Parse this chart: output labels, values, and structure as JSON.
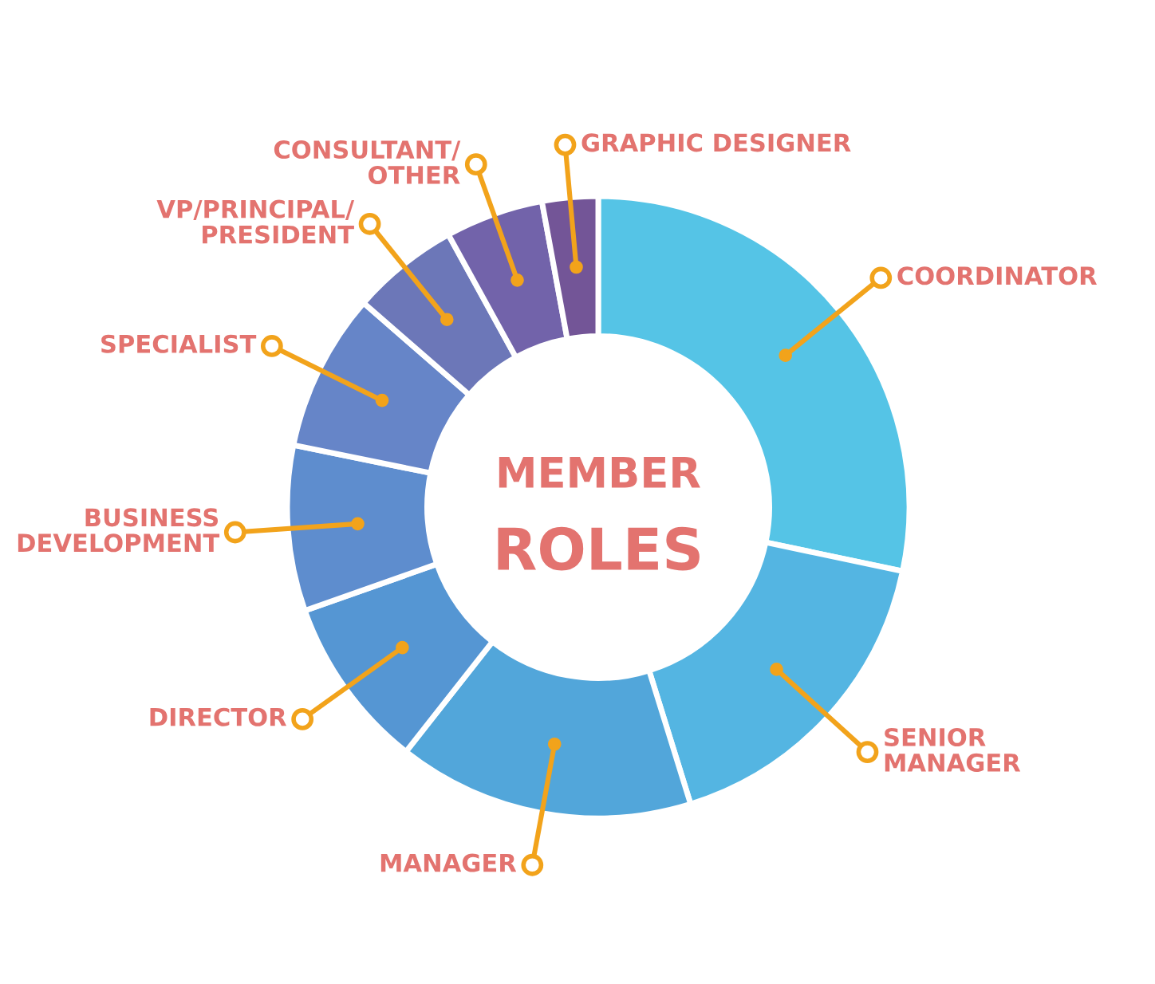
{
  "chart_data": {
    "type": "donut",
    "title": "MEMBER\nROLES",
    "categories": [
      "COORDINATOR",
      "SENIOR\nMANAGER",
      "MANAGER",
      "DIRECTOR",
      "BUSINESS\nDEVELOPMENT",
      "SPECIALIST",
      "VP/PRINCIPAL/\nPRESIDENT",
      "CONSULTANT/\nOTHER",
      "GRAPHIC DESIGNER"
    ],
    "values": [
      28.3,
      16.9,
      15.4,
      9.0,
      8.6,
      8.2,
      5.6,
      5.1,
      2.9
    ],
    "colors": [
      "#55c4e6",
      "#54b5e2",
      "#52a6da",
      "#5596d3",
      "#5e8dce",
      "#6685c8",
      "#6c77b8",
      "#7263aa",
      "#735597"
    ]
  }
}
